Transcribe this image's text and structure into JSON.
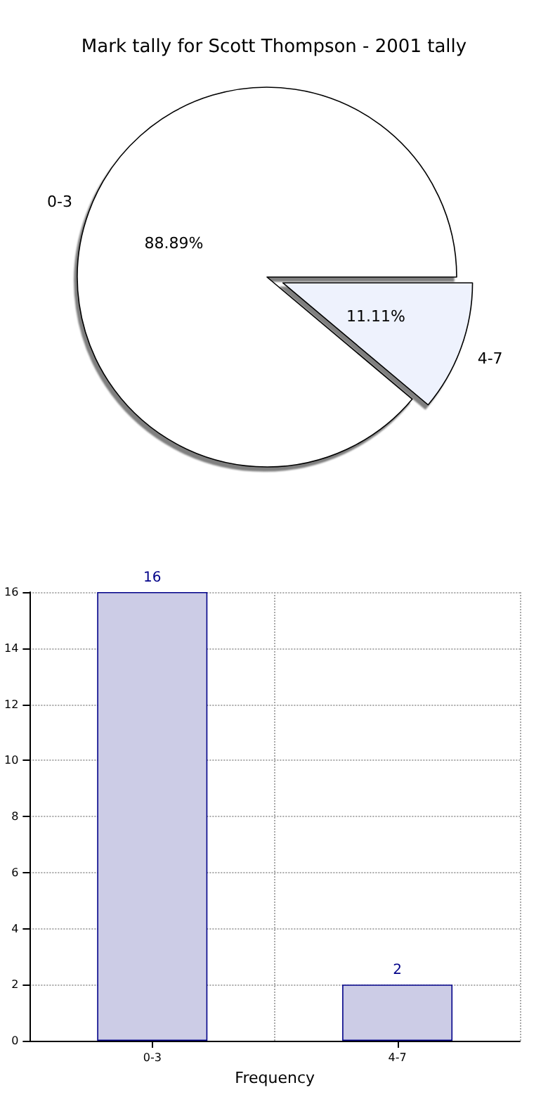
{
  "chart_data": [
    {
      "type": "pie",
      "title": "Mark tally for Scott Thompson - 2001 tally",
      "categories": [
        "0-3",
        "4-7"
      ],
      "values": [
        88.89,
        11.11
      ],
      "colors": [
        "#ffffff",
        "#eef2fd"
      ],
      "value_labels": [
        "88.89%",
        "11.11%"
      ],
      "legend": false
    },
    {
      "type": "bar",
      "xlabel": "Frequency",
      "categories": [
        "0-3",
        "4-7"
      ],
      "values": [
        16,
        2
      ],
      "color": "#cccce6",
      "ylim": [
        0,
        16
      ],
      "yticks": [
        0,
        2,
        4,
        6,
        8,
        10,
        12,
        14,
        16
      ],
      "grid": true,
      "data_labels": true,
      "legend": false
    }
  ]
}
